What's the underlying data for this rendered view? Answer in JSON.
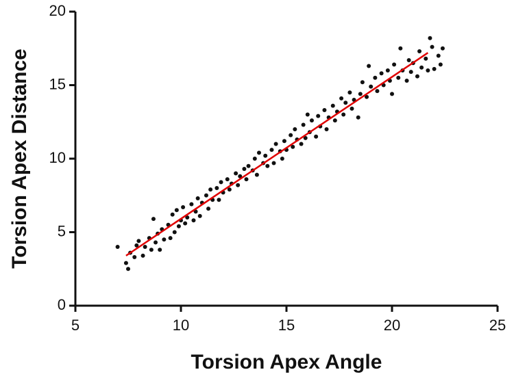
{
  "chart_data": {
    "type": "scatter",
    "xlabel": "Torsion Apex Angle",
    "ylabel": "Torsion Apex Distance",
    "xlim": [
      5,
      25
    ],
    "xticks": [
      5,
      10,
      15,
      20,
      25
    ],
    "ylim": [
      0,
      20
    ],
    "yticks": [
      0,
      5,
      10,
      15,
      20
    ],
    "color": "#111111",
    "x": [
      7.0,
      7.4,
      7.5,
      7.6,
      7.8,
      7.9,
      8.0,
      8.2,
      8.3,
      8.5,
      8.6,
      8.7,
      8.8,
      8.9,
      9.0,
      9.1,
      9.2,
      9.4,
      9.5,
      9.6,
      9.7,
      9.8,
      9.9,
      10.0,
      10.1,
      10.2,
      10.3,
      10.5,
      10.6,
      10.7,
      10.8,
      10.9,
      11.0,
      11.2,
      11.3,
      11.4,
      11.5,
      11.7,
      11.8,
      11.9,
      12.0,
      12.2,
      12.3,
      12.4,
      12.6,
      12.7,
      12.8,
      13.0,
      13.1,
      13.2,
      13.4,
      13.5,
      13.6,
      13.7,
      13.9,
      14.0,
      14.1,
      14.3,
      14.4,
      14.5,
      14.7,
      14.8,
      14.9,
      15.0,
      15.2,
      15.3,
      15.4,
      15.5,
      15.7,
      15.8,
      15.9,
      16.0,
      16.1,
      16.2,
      16.4,
      16.5,
      16.6,
      16.8,
      16.9,
      17.0,
      17.2,
      17.3,
      17.4,
      17.6,
      17.7,
      17.8,
      18.0,
      18.1,
      18.2,
      18.4,
      18.5,
      18.6,
      18.8,
      18.9,
      19.0,
      19.2,
      19.3,
      19.5,
      19.6,
      19.8,
      19.9,
      20.0,
      20.1,
      20.3,
      20.4,
      20.5,
      20.7,
      20.8,
      20.9,
      21.0,
      21.2,
      21.3,
      21.4,
      21.6,
      21.7,
      21.8,
      21.9,
      22.0,
      22.2,
      22.3,
      22.4
    ],
    "y": [
      4.0,
      2.9,
      2.5,
      3.6,
      3.3,
      4.1,
      4.4,
      3.4,
      4.0,
      4.6,
      3.8,
      5.9,
      4.3,
      4.9,
      3.8,
      5.2,
      4.5,
      5.5,
      4.6,
      6.2,
      5.0,
      6.5,
      5.4,
      5.8,
      6.7,
      5.6,
      6.0,
      6.9,
      5.8,
      6.4,
      7.3,
      6.1,
      7.0,
      7.5,
      6.6,
      7.9,
      7.2,
      8.0,
      7.2,
      8.4,
      7.7,
      8.6,
      7.9,
      8.3,
      9.0,
      8.2,
      8.8,
      9.3,
      8.6,
      9.5,
      9.2,
      10.0,
      8.9,
      10.4,
      9.7,
      10.2,
      9.5,
      10.6,
      9.7,
      11.0,
      10.5,
      10.0,
      11.2,
      10.6,
      11.6,
      10.8,
      12.0,
      11.3,
      11.0,
      12.3,
      11.4,
      13.0,
      11.8,
      12.6,
      11.5,
      12.9,
      12.2,
      13.3,
      12.0,
      12.8,
      13.6,
      12.6,
      13.2,
      14.1,
      13.0,
      13.8,
      14.5,
      13.4,
      14.0,
      12.8,
      14.4,
      15.2,
      14.2,
      16.3,
      14.9,
      15.5,
      14.6,
      15.8,
      15.0,
      16.0,
      15.3,
      14.4,
      16.4,
      15.5,
      17.5,
      16.0,
      15.3,
      16.7,
      15.9,
      16.5,
      15.6,
      17.3,
      16.2,
      16.8,
      16.0,
      18.2,
      17.6,
      16.1,
      17.0,
      16.4,
      17.5
    ],
    "fit": {
      "color": "#e00000",
      "x": [
        7.4,
        21.7
      ],
      "y": [
        3.4,
        17.2
      ]
    }
  }
}
